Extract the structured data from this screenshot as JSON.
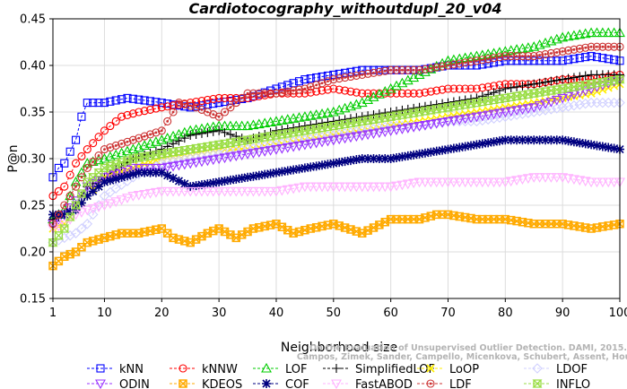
{
  "chart_data": {
    "type": "line",
    "title": "Cardiotocography_withoutdupl_20_v04",
    "xlabel": "Neighborhood size",
    "ylabel": "P@n",
    "xlim": [
      1,
      100
    ],
    "ylim": [
      0.15,
      0.45
    ],
    "x_ticks": [
      "1",
      "10",
      "20",
      "30",
      "40",
      "50",
      "60",
      "70",
      "80",
      "90",
      "100"
    ],
    "y_ticks": [
      "0.15",
      "0.20",
      "0.25",
      "0.30",
      "0.35",
      "0.40",
      "0.45"
    ],
    "grid": true,
    "legend_position": "bottom",
    "credit": [
      "Campos, Zimek, Sander, Campello, Micenkova, Schubert, Assent, Houle",
      "On the Evaluation of Unsupervised Outlier Detection. DAMI, 2015."
    ],
    "series": [
      {
        "name": "kNN",
        "color": "#0000ff",
        "marker": "square",
        "points": [
          [
            1,
            0.28
          ],
          [
            2,
            0.29
          ],
          [
            3,
            0.295
          ],
          [
            5,
            0.32
          ],
          [
            6,
            0.345
          ],
          [
            7,
            0.36
          ],
          [
            10,
            0.36
          ],
          [
            14,
            0.365
          ],
          [
            20,
            0.36
          ],
          [
            25,
            0.355
          ],
          [
            30,
            0.36
          ],
          [
            35,
            0.365
          ],
          [
            40,
            0.375
          ],
          [
            45,
            0.385
          ],
          [
            50,
            0.39
          ],
          [
            55,
            0.395
          ],
          [
            60,
            0.395
          ],
          [
            65,
            0.395
          ],
          [
            70,
            0.4
          ],
          [
            75,
            0.4
          ],
          [
            80,
            0.405
          ],
          [
            85,
            0.405
          ],
          [
            90,
            0.405
          ],
          [
            95,
            0.41
          ],
          [
            100,
            0.405
          ]
        ]
      },
      {
        "name": "kNNW",
        "color": "#ff0000",
        "marker": "circle",
        "points": [
          [
            1,
            0.26
          ],
          [
            3,
            0.27
          ],
          [
            5,
            0.295
          ],
          [
            7,
            0.31
          ],
          [
            10,
            0.33
          ],
          [
            13,
            0.345
          ],
          [
            16,
            0.35
          ],
          [
            20,
            0.355
          ],
          [
            25,
            0.36
          ],
          [
            30,
            0.365
          ],
          [
            35,
            0.365
          ],
          [
            40,
            0.37
          ],
          [
            45,
            0.37
          ],
          [
            50,
            0.375
          ],
          [
            55,
            0.37
          ],
          [
            60,
            0.37
          ],
          [
            65,
            0.37
          ],
          [
            70,
            0.375
          ],
          [
            75,
            0.375
          ],
          [
            80,
            0.38
          ],
          [
            85,
            0.38
          ],
          [
            90,
            0.385
          ],
          [
            95,
            0.385
          ],
          [
            100,
            0.39
          ]
        ]
      },
      {
        "name": "LOF",
        "color": "#00cc00",
        "marker": "triangle",
        "points": [
          [
            1,
            0.235
          ],
          [
            3,
            0.245
          ],
          [
            5,
            0.275
          ],
          [
            7,
            0.295
          ],
          [
            10,
            0.3
          ],
          [
            15,
            0.31
          ],
          [
            20,
            0.32
          ],
          [
            25,
            0.33
          ],
          [
            30,
            0.335
          ],
          [
            35,
            0.335
          ],
          [
            40,
            0.34
          ],
          [
            45,
            0.345
          ],
          [
            50,
            0.35
          ],
          [
            55,
            0.36
          ],
          [
            60,
            0.375
          ],
          [
            65,
            0.39
          ],
          [
            70,
            0.405
          ],
          [
            75,
            0.41
          ],
          [
            80,
            0.415
          ],
          [
            85,
            0.42
          ],
          [
            90,
            0.43
          ],
          [
            95,
            0.435
          ],
          [
            100,
            0.435
          ]
        ]
      },
      {
        "name": "SimplifiedLOF",
        "color": "#000000",
        "marker": "plus",
        "points": [
          [
            1,
            0.235
          ],
          [
            3,
            0.24
          ],
          [
            5,
            0.25
          ],
          [
            7,
            0.27
          ],
          [
            10,
            0.28
          ],
          [
            15,
            0.3
          ],
          [
            20,
            0.31
          ],
          [
            25,
            0.325
          ],
          [
            30,
            0.33
          ],
          [
            35,
            0.32
          ],
          [
            40,
            0.33
          ],
          [
            45,
            0.335
          ],
          [
            50,
            0.34
          ],
          [
            55,
            0.345
          ],
          [
            60,
            0.35
          ],
          [
            65,
            0.355
          ],
          [
            70,
            0.36
          ],
          [
            75,
            0.365
          ],
          [
            80,
            0.375
          ],
          [
            85,
            0.38
          ],
          [
            90,
            0.385
          ],
          [
            95,
            0.39
          ],
          [
            100,
            0.39
          ]
        ]
      },
      {
        "name": "LoOP",
        "color": "#ffee00",
        "marker": "x",
        "points": [
          [
            1,
            0.225
          ],
          [
            3,
            0.23
          ],
          [
            5,
            0.245
          ],
          [
            7,
            0.26
          ],
          [
            10,
            0.28
          ],
          [
            15,
            0.29
          ],
          [
            20,
            0.3
          ],
          [
            25,
            0.305
          ],
          [
            30,
            0.31
          ],
          [
            35,
            0.31
          ],
          [
            40,
            0.315
          ],
          [
            45,
            0.32
          ],
          [
            50,
            0.325
          ],
          [
            55,
            0.33
          ],
          [
            60,
            0.335
          ],
          [
            65,
            0.34
          ],
          [
            70,
            0.345
          ],
          [
            75,
            0.35
          ],
          [
            80,
            0.355
          ],
          [
            85,
            0.36
          ],
          [
            90,
            0.365
          ],
          [
            95,
            0.37
          ],
          [
            100,
            0.38
          ]
        ]
      },
      {
        "name": "LDOF",
        "color": "#d0d0ff",
        "marker": "diamond",
        "points": [
          [
            1,
            0.21
          ],
          [
            3,
            0.215
          ],
          [
            5,
            0.22
          ],
          [
            7,
            0.23
          ],
          [
            10,
            0.26
          ],
          [
            15,
            0.28
          ],
          [
            20,
            0.295
          ],
          [
            25,
            0.3
          ],
          [
            30,
            0.305
          ],
          [
            35,
            0.31
          ],
          [
            40,
            0.315
          ],
          [
            45,
            0.32
          ],
          [
            50,
            0.325
          ],
          [
            55,
            0.33
          ],
          [
            60,
            0.335
          ],
          [
            65,
            0.335
          ],
          [
            70,
            0.34
          ],
          [
            75,
            0.34
          ],
          [
            80,
            0.345
          ],
          [
            85,
            0.35
          ],
          [
            90,
            0.355
          ],
          [
            95,
            0.36
          ],
          [
            100,
            0.36
          ]
        ]
      },
      {
        "name": "ODIN",
        "color": "#9933ff",
        "marker": "triangle-down",
        "points": [
          [
            1,
            0.23
          ],
          [
            3,
            0.24
          ],
          [
            5,
            0.255
          ],
          [
            7,
            0.27
          ],
          [
            10,
            0.28
          ],
          [
            15,
            0.29
          ],
          [
            20,
            0.29
          ],
          [
            25,
            0.295
          ],
          [
            30,
            0.3
          ],
          [
            35,
            0.305
          ],
          [
            40,
            0.31
          ],
          [
            45,
            0.315
          ],
          [
            50,
            0.32
          ],
          [
            55,
            0.325
          ],
          [
            60,
            0.33
          ],
          [
            65,
            0.335
          ],
          [
            70,
            0.34
          ],
          [
            75,
            0.345
          ],
          [
            80,
            0.35
          ],
          [
            85,
            0.355
          ],
          [
            90,
            0.365
          ],
          [
            95,
            0.375
          ],
          [
            100,
            0.385
          ]
        ]
      },
      {
        "name": "KDEOS",
        "color": "#ffaa00",
        "marker": "square-x",
        "points": [
          [
            1,
            0.185
          ],
          [
            3,
            0.195
          ],
          [
            5,
            0.2
          ],
          [
            7,
            0.21
          ],
          [
            10,
            0.215
          ],
          [
            13,
            0.22
          ],
          [
            16,
            0.22
          ],
          [
            20,
            0.225
          ],
          [
            22,
            0.215
          ],
          [
            25,
            0.21
          ],
          [
            28,
            0.22
          ],
          [
            30,
            0.225
          ],
          [
            33,
            0.215
          ],
          [
            36,
            0.225
          ],
          [
            40,
            0.23
          ],
          [
            43,
            0.22
          ],
          [
            46,
            0.225
          ],
          [
            50,
            0.23
          ],
          [
            55,
            0.22
          ],
          [
            60,
            0.235
          ],
          [
            65,
            0.235
          ],
          [
            68,
            0.24
          ],
          [
            70,
            0.24
          ],
          [
            75,
            0.235
          ],
          [
            80,
            0.235
          ],
          [
            85,
            0.23
          ],
          [
            90,
            0.23
          ],
          [
            95,
            0.225
          ],
          [
            100,
            0.23
          ]
        ]
      },
      {
        "name": "COF",
        "color": "#000080",
        "marker": "star",
        "points": [
          [
            1,
            0.24
          ],
          [
            3,
            0.24
          ],
          [
            5,
            0.245
          ],
          [
            7,
            0.26
          ],
          [
            10,
            0.275
          ],
          [
            13,
            0.28
          ],
          [
            16,
            0.285
          ],
          [
            20,
            0.285
          ],
          [
            25,
            0.27
          ],
          [
            30,
            0.275
          ],
          [
            35,
            0.28
          ],
          [
            40,
            0.285
          ],
          [
            45,
            0.29
          ],
          [
            50,
            0.295
          ],
          [
            55,
            0.3
          ],
          [
            60,
            0.3
          ],
          [
            65,
            0.305
          ],
          [
            70,
            0.31
          ],
          [
            75,
            0.315
          ],
          [
            80,
            0.32
          ],
          [
            85,
            0.32
          ],
          [
            90,
            0.32
          ],
          [
            95,
            0.315
          ],
          [
            100,
            0.31
          ]
        ]
      },
      {
        "name": "FastABOD",
        "color": "#ffb0ff",
        "marker": "triangle-down",
        "points": [
          [
            1,
            0.225
          ],
          [
            3,
            0.23
          ],
          [
            5,
            0.24
          ],
          [
            7,
            0.245
          ],
          [
            10,
            0.25
          ],
          [
            15,
            0.26
          ],
          [
            20,
            0.265
          ],
          [
            25,
            0.265
          ],
          [
            30,
            0.265
          ],
          [
            35,
            0.265
          ],
          [
            40,
            0.265
          ],
          [
            45,
            0.27
          ],
          [
            50,
            0.27
          ],
          [
            55,
            0.27
          ],
          [
            60,
            0.27
          ],
          [
            65,
            0.275
          ],
          [
            70,
            0.275
          ],
          [
            75,
            0.275
          ],
          [
            80,
            0.275
          ],
          [
            85,
            0.28
          ],
          [
            90,
            0.28
          ],
          [
            95,
            0.275
          ],
          [
            100,
            0.275
          ]
        ]
      },
      {
        "name": "LDF",
        "color": "#cc3333",
        "marker": "circle-dot",
        "points": [
          [
            1,
            0.23
          ],
          [
            3,
            0.25
          ],
          [
            5,
            0.27
          ],
          [
            7,
            0.29
          ],
          [
            10,
            0.31
          ],
          [
            15,
            0.32
          ],
          [
            20,
            0.33
          ],
          [
            23,
            0.36
          ],
          [
            26,
            0.355
          ],
          [
            30,
            0.345
          ],
          [
            33,
            0.36
          ],
          [
            35,
            0.37
          ],
          [
            40,
            0.37
          ],
          [
            45,
            0.375
          ],
          [
            50,
            0.385
          ],
          [
            55,
            0.39
          ],
          [
            60,
            0.395
          ],
          [
            65,
            0.395
          ],
          [
            70,
            0.4
          ],
          [
            75,
            0.405
          ],
          [
            80,
            0.41
          ],
          [
            85,
            0.41
          ],
          [
            90,
            0.415
          ],
          [
            95,
            0.42
          ],
          [
            100,
            0.42
          ]
        ]
      },
      {
        "name": "INFLO",
        "color": "#99dd44",
        "marker": "hourglass",
        "points": [
          [
            1,
            0.21
          ],
          [
            3,
            0.225
          ],
          [
            5,
            0.25
          ],
          [
            7,
            0.275
          ],
          [
            10,
            0.29
          ],
          [
            15,
            0.3
          ],
          [
            20,
            0.305
          ],
          [
            25,
            0.31
          ],
          [
            30,
            0.315
          ],
          [
            35,
            0.32
          ],
          [
            40,
            0.325
          ],
          [
            45,
            0.33
          ],
          [
            50,
            0.335
          ],
          [
            55,
            0.34
          ],
          [
            60,
            0.345
          ],
          [
            65,
            0.35
          ],
          [
            70,
            0.355
          ],
          [
            75,
            0.36
          ],
          [
            80,
            0.365
          ],
          [
            85,
            0.37
          ],
          [
            90,
            0.375
          ],
          [
            95,
            0.38
          ],
          [
            100,
            0.385
          ]
        ]
      }
    ]
  }
}
